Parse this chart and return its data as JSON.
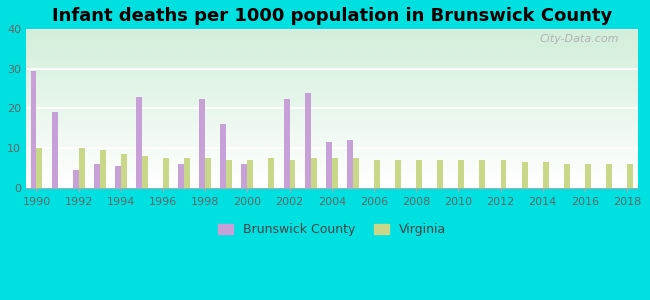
{
  "title": "Infant deaths per 1000 population in Brunswick County",
  "years": [
    1990,
    1991,
    1992,
    1993,
    1994,
    1995,
    1996,
    1997,
    1998,
    1999,
    2000,
    2001,
    2002,
    2003,
    2004,
    2005,
    2006,
    2007,
    2008,
    2009,
    2010,
    2011,
    2012,
    2013,
    2014,
    2015,
    2016,
    2017,
    2018
  ],
  "brunswick": [
    29.5,
    19.0,
    4.5,
    6.0,
    5.5,
    23.0,
    0,
    6.0,
    22.5,
    16.0,
    6.0,
    0,
    22.5,
    24.0,
    11.5,
    12.0,
    0,
    0,
    0,
    0,
    0,
    0,
    0,
    0,
    0,
    0,
    0,
    0,
    0
  ],
  "virginia": [
    10.0,
    0,
    10.0,
    9.5,
    8.5,
    8.0,
    7.5,
    7.5,
    7.5,
    7.0,
    7.0,
    7.5,
    7.0,
    7.5,
    7.5,
    7.5,
    7.0,
    7.0,
    7.0,
    7.0,
    7.0,
    7.0,
    7.0,
    6.5,
    6.5,
    6.0,
    6.0,
    6.0,
    6.0
  ],
  "brunswick_color": "#c8a0d8",
  "virginia_color": "#c8d888",
  "background_outer": "#00e0e0",
  "ylim": [
    0,
    40
  ],
  "yticks": [
    0,
    10,
    20,
    30,
    40
  ],
  "bar_width": 0.28,
  "title_fontsize": 13,
  "watermark": "City-Data.com"
}
